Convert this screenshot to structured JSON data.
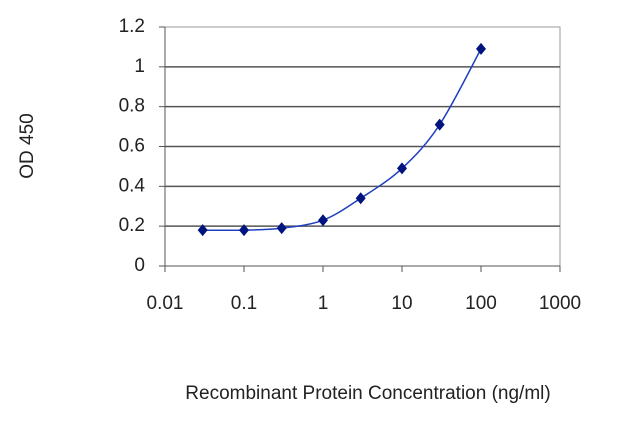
{
  "chart_data": {
    "type": "line",
    "x_label": "Recombinant Protein Concentration (ng/ml)",
    "y_label": "OD 450",
    "x": [
      0.03,
      0.1,
      0.3,
      1,
      3,
      10,
      30,
      100
    ],
    "values": [
      0.18,
      0.18,
      0.19,
      0.23,
      0.34,
      0.49,
      0.71,
      1.09
    ],
    "color": "#1f3fbf",
    "marker_color": "#00137f",
    "xscale": "log",
    "xlim": [
      0.01,
      1000
    ],
    "xticks": [
      0.01,
      0.1,
      1,
      10,
      100,
      1000
    ],
    "ylim": [
      0,
      1.2
    ],
    "yticks": [
      0,
      0.2,
      0.4,
      0.6,
      0.8,
      1,
      1.2
    ],
    "grid": true
  }
}
